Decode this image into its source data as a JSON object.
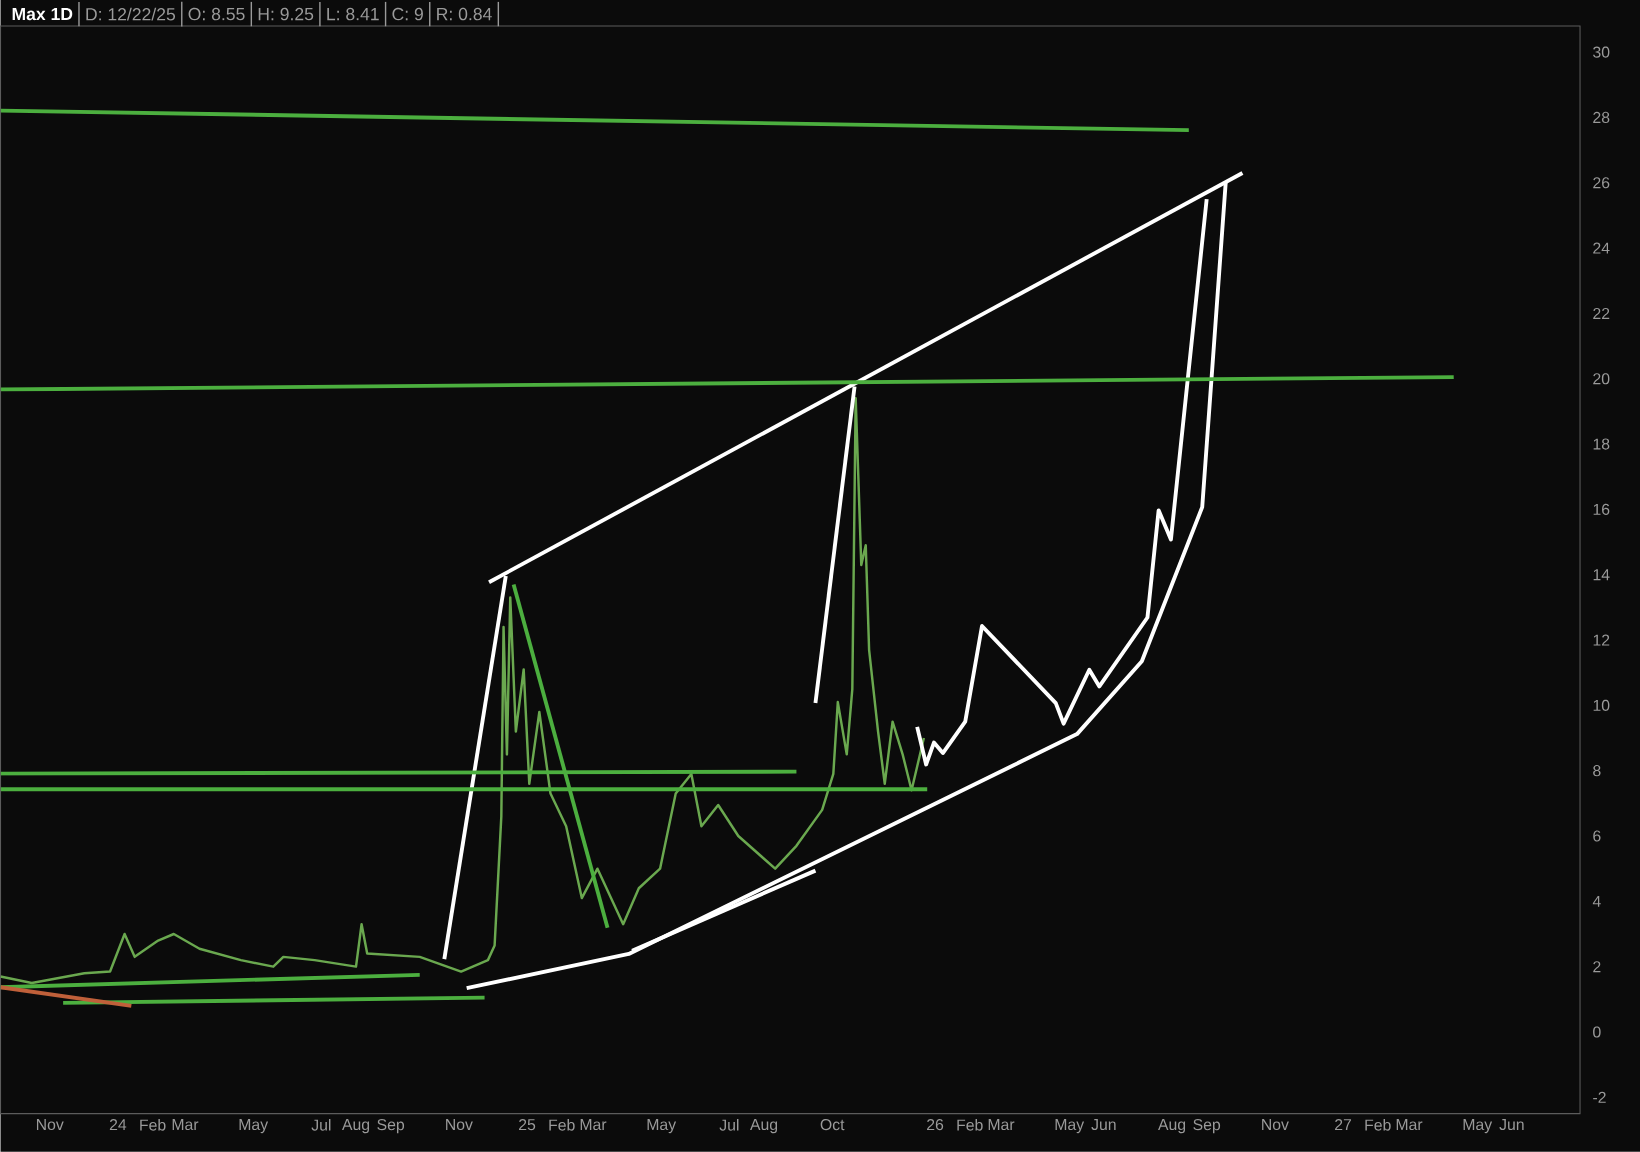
{
  "chart_data": {
    "type": "line",
    "title": "Max 1D",
    "annotations": [
      "D: 12/22/25",
      "O: 8.55",
      "H: 9.25",
      "L: 8.41",
      "C: 9",
      "R: 0.84"
    ],
    "xlim": [
      "2023-09-18",
      "2027-08-01"
    ],
    "ylim": [
      -2.5,
      30.8
    ],
    "yticks": [
      -2,
      0,
      2,
      4,
      6,
      8,
      10,
      12,
      14,
      16,
      18,
      20,
      22,
      24,
      26,
      28,
      30
    ],
    "xticks": [
      {
        "value": "2023-11-01",
        "label": "Nov"
      },
      {
        "value": "2024-01-01",
        "label": "24"
      },
      {
        "value": "2024-02-01",
        "label": "Feb"
      },
      {
        "value": "2024-03-01",
        "label": "Mar"
      },
      {
        "value": "2024-05-01",
        "label": "May"
      },
      {
        "value": "2024-07-01",
        "label": "Jul"
      },
      {
        "value": "2024-08-01",
        "label": "Aug"
      },
      {
        "value": "2024-09-01",
        "label": "Sep"
      },
      {
        "value": "2024-11-01",
        "label": "Nov"
      },
      {
        "value": "2025-01-01",
        "label": "25"
      },
      {
        "value": "2025-02-01",
        "label": "Feb"
      },
      {
        "value": "2025-03-01",
        "label": "Mar"
      },
      {
        "value": "2025-05-01",
        "label": "May"
      },
      {
        "value": "2025-07-01",
        "label": "Jul"
      },
      {
        "value": "2025-08-01",
        "label": "Aug"
      },
      {
        "value": "2025-10-01",
        "label": "Oct"
      },
      {
        "value": "2026-01-01",
        "label": "26"
      },
      {
        "value": "2026-02-01",
        "label": "Feb"
      },
      {
        "value": "2026-03-01",
        "label": "Mar"
      },
      {
        "value": "2026-05-01",
        "label": "May"
      },
      {
        "value": "2026-06-01",
        "label": "Jun"
      },
      {
        "value": "2026-08-01",
        "label": "Aug"
      },
      {
        "value": "2026-09-01",
        "label": "Sep"
      },
      {
        "value": "2026-11-01",
        "label": "Nov"
      },
      {
        "value": "2027-01-01",
        "label": "27"
      },
      {
        "value": "2027-02-01",
        "label": "Feb"
      },
      {
        "value": "2027-03-01",
        "label": "Mar"
      },
      {
        "value": "2027-05-01",
        "label": "May"
      },
      {
        "value": "2027-06-01",
        "label": "Jun"
      }
    ],
    "series": [
      {
        "color": "#6aa84f",
        "x": [
          "2023-09-18",
          "2023-10-16",
          "2023-12-02",
          "2023-12-25",
          "2024-01-07",
          "2024-01-16",
          "2024-02-06",
          "2024-02-20",
          "2024-03-14",
          "2024-04-20",
          "2024-05-19",
          "2024-05-28",
          "2024-06-25",
          "2024-08-01",
          "2024-08-06",
          "2024-08-11",
          "2024-09-27",
          "2024-11-03",
          "2024-11-27",
          "2024-12-03",
          "2024-12-09",
          "2024-12-11",
          "2024-12-14",
          "2024-12-17",
          "2024-12-22",
          "2024-12-29",
          "2025-01-03",
          "2025-01-12",
          "2025-01-22",
          "2025-02-05",
          "2025-02-19",
          "2025-03-05",
          "2025-03-28",
          "2025-04-11",
          "2025-04-30",
          "2025-05-14",
          "2025-05-28",
          "2025-06-06",
          "2025-06-21",
          "2025-07-09",
          "2025-08-11",
          "2025-08-30",
          "2025-09-22",
          "2025-10-02",
          "2025-10-06",
          "2025-10-14",
          "2025-10-19",
          "2025-10-22",
          "2025-10-27",
          "2025-10-31",
          "2025-11-03",
          "2025-11-11",
          "2025-11-17",
          "2025-11-24",
          "2025-12-03",
          "2025-12-11",
          "2025-12-22"
        ],
        "values": [
          1.7,
          1.5,
          1.8,
          1.85,
          3.0,
          2.3,
          2.8,
          3.0,
          2.55,
          2.2,
          2.0,
          2.3,
          2.2,
          2.0,
          3.3,
          2.4,
          2.3,
          1.85,
          2.2,
          2.65,
          6.6,
          12.4,
          8.5,
          13.3,
          9.2,
          11.1,
          7.6,
          9.8,
          7.3,
          6.3,
          4.1,
          5.0,
          3.3,
          4.4,
          5.0,
          7.3,
          7.9,
          6.3,
          6.95,
          6.0,
          5.0,
          5.7,
          6.8,
          7.9,
          10.1,
          8.5,
          10.5,
          19.4,
          14.3,
          14.9,
          11.7,
          9.2,
          7.6,
          9.5,
          8.5,
          7.4,
          9.0
        ]
      },
      {
        "color": "#ffffff",
        "x": [
          "2024-11-28",
          "2026-10-03"
        ],
        "values": [
          13.77,
          26.3
        ]
      },
      {
        "color": "#ffffff",
        "x": [
          "2024-11-08",
          "2025-04-02",
          "2026-05-08",
          "2026-07-05",
          "2026-08-28",
          "2026-09-18"
        ],
        "values": [
          1.34,
          2.39,
          9.12,
          11.35,
          16.07,
          26.0
        ]
      },
      {
        "color": "#ffffff",
        "x": [
          "2025-04-05",
          "2025-09-16"
        ],
        "values": [
          2.49,
          4.94
        ]
      },
      {
        "color": "#ffffff",
        "x": [
          "2024-10-19",
          "2024-12-13"
        ],
        "values": [
          2.23,
          13.96
        ]
      },
      {
        "color": "#ffffff",
        "x": [
          "2025-09-16",
          "2025-10-21"
        ],
        "values": [
          10.07,
          19.76
        ]
      },
      {
        "color": "#ffffff",
        "x": [
          "2025-12-16",
          "2025-12-24",
          "2025-12-31",
          "2026-01-08",
          "2026-01-28",
          "2026-02-12",
          "2026-04-19",
          "2026-04-26",
          "2026-05-19",
          "2026-05-28",
          "2026-07-10",
          "2026-07-20",
          "2026-07-31",
          "2026-09-01"
        ],
        "values": [
          9.34,
          8.19,
          8.86,
          8.54,
          9.5,
          12.43,
          10.07,
          9.44,
          11.09,
          10.58,
          12.69,
          15.97,
          15.08,
          25.5
        ]
      },
      {
        "color": "#4caf3f",
        "x": [
          "2023-09-18",
          "2026-08-16"
        ],
        "values": [
          28.21,
          27.61
        ]
      },
      {
        "color": "#4caf3f",
        "x": [
          "2023-09-18",
          "2027-04-10"
        ],
        "values": [
          19.67,
          20.05
        ]
      },
      {
        "color": "#4caf3f",
        "x": [
          "2023-09-18",
          "2025-08-30"
        ],
        "values": [
          7.91,
          7.97
        ]
      },
      {
        "color": "#4caf3f",
        "x": [
          "2023-09-18",
          "2025-12-25"
        ],
        "values": [
          7.43,
          7.43
        ]
      },
      {
        "color": "#4caf3f",
        "x": [
          "2024-12-20",
          "2025-03-14"
        ],
        "values": [
          13.7,
          3.19
        ]
      },
      {
        "color": "#4caf3f",
        "x": [
          "2023-09-18",
          "2024-09-27"
        ],
        "values": [
          1.37,
          1.75
        ]
      },
      {
        "color": "#4caf3f",
        "x": [
          "2023-11-13",
          "2024-11-24"
        ],
        "values": [
          0.89,
          1.05
        ]
      },
      {
        "color": "#c0603a",
        "x": [
          "2023-09-18",
          "2024-01-13"
        ],
        "values": [
          1.37,
          0.8
        ]
      }
    ]
  }
}
